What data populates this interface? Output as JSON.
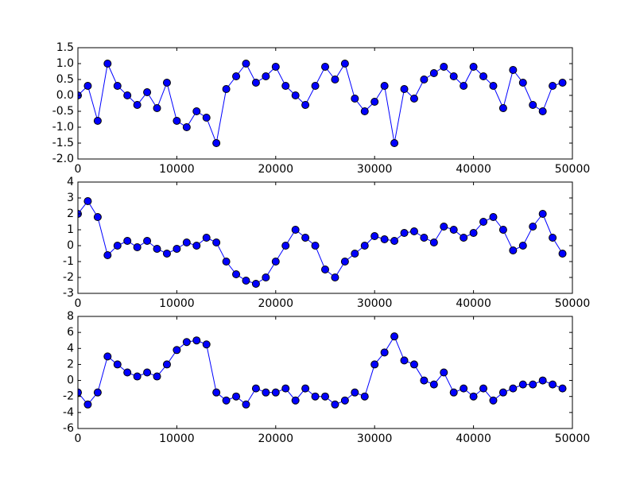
{
  "chart_data": [
    {
      "type": "line",
      "marker": "o",
      "color": "#0000ff",
      "marker_edge_color": "#000000",
      "x": [
        0,
        1000,
        2000,
        3000,
        4000,
        5000,
        6000,
        7000,
        8000,
        9000,
        10000,
        11000,
        12000,
        13000,
        14000,
        15000,
        16000,
        17000,
        18000,
        19000,
        20000,
        21000,
        22000,
        23000,
        24000,
        25000,
        26000,
        27000,
        28000,
        29000,
        30000,
        31000,
        32000,
        33000,
        34000,
        35000,
        36000,
        37000,
        38000,
        39000,
        40000,
        41000,
        42000,
        43000,
        44000,
        45000,
        46000,
        47000,
        48000,
        49000
      ],
      "values": [
        0,
        0.3,
        -0.8,
        1.0,
        0.3,
        0.0,
        -0.3,
        0.1,
        -0.4,
        0.4,
        -0.8,
        -1.0,
        -0.5,
        -0.7,
        -1.5,
        0.2,
        0.6,
        1.0,
        0.4,
        0.6,
        0.9,
        0.3,
        0.0,
        -0.3,
        0.3,
        0.9,
        0.5,
        1.0,
        -0.1,
        -0.5,
        -0.2,
        0.3,
        -1.5,
        0.2,
        -0.1,
        0.5,
        0.7,
        0.9,
        0.6,
        0.3,
        0.9,
        0.6,
        0.3,
        -0.4,
        0.8,
        0.4,
        -0.3,
        -0.5,
        0.3,
        0.4
      ],
      "xlim": [
        0,
        50000
      ],
      "xticks": [
        0,
        10000,
        20000,
        30000,
        40000,
        50000
      ],
      "ylim": [
        -2,
        1.5
      ],
      "yticks": [
        {
          "value": -2,
          "label": "-2.0"
        },
        -1.5,
        {
          "value": -1,
          "label": "-1.0"
        },
        -0.5,
        {
          "value": 0,
          "label": "0.0"
        },
        0.5,
        {
          "value": 1,
          "label": "1.0"
        },
        1.5
      ]
    },
    {
      "type": "line",
      "marker": "o",
      "color": "#0000ff",
      "marker_edge_color": "#000000",
      "x": [
        0,
        1000,
        2000,
        3000,
        4000,
        5000,
        6000,
        7000,
        8000,
        9000,
        10000,
        11000,
        12000,
        13000,
        14000,
        15000,
        16000,
        17000,
        18000,
        19000,
        20000,
        21000,
        22000,
        23000,
        24000,
        25000,
        26000,
        27000,
        28000,
        29000,
        30000,
        31000,
        32000,
        33000,
        34000,
        35000,
        36000,
        37000,
        38000,
        39000,
        40000,
        41000,
        42000,
        43000,
        44000,
        45000,
        46000,
        47000,
        48000,
        49000
      ],
      "values": [
        2.0,
        2.8,
        1.8,
        -0.6,
        0.0,
        0.3,
        -0.1,
        0.3,
        -0.2,
        -0.5,
        -0.2,
        0.2,
        0.0,
        0.5,
        0.2,
        -1.0,
        -1.8,
        -2.2,
        -2.4,
        -2.0,
        -1.0,
        0.0,
        1.0,
        0.5,
        0.0,
        -1.5,
        -2.0,
        -1.0,
        -0.5,
        0.0,
        0.6,
        0.4,
        0.3,
        0.8,
        0.9,
        0.5,
        0.2,
        1.2,
        1.0,
        0.5,
        0.8,
        1.5,
        1.8,
        1.0,
        -0.3,
        0.0,
        1.2,
        2.0,
        0.5,
        -0.5
      ],
      "xlim": [
        0,
        50000
      ],
      "xticks": [
        0,
        10000,
        20000,
        30000,
        40000,
        50000
      ],
      "ylim": [
        -3,
        4
      ],
      "yticks": [
        -3,
        -2,
        -1,
        0,
        1,
        2,
        3,
        4
      ]
    },
    {
      "type": "line",
      "marker": "o",
      "color": "#0000ff",
      "marker_edge_color": "#000000",
      "x": [
        0,
        1000,
        2000,
        3000,
        4000,
        5000,
        6000,
        7000,
        8000,
        9000,
        10000,
        11000,
        12000,
        13000,
        14000,
        15000,
        16000,
        17000,
        18000,
        19000,
        20000,
        21000,
        22000,
        23000,
        24000,
        25000,
        26000,
        27000,
        28000,
        29000,
        30000,
        31000,
        32000,
        33000,
        34000,
        35000,
        36000,
        37000,
        38000,
        39000,
        40000,
        41000,
        42000,
        43000,
        44000,
        45000,
        46000,
        47000,
        48000,
        49000
      ],
      "values": [
        -1.5,
        -3.0,
        -1.5,
        3.0,
        2.0,
        1.0,
        0.5,
        1.0,
        0.5,
        2.0,
        3.8,
        4.8,
        5.0,
        4.5,
        -1.5,
        -2.5,
        -2.0,
        -3.0,
        -1.0,
        -1.5,
        -1.5,
        -1.0,
        -2.5,
        -1.0,
        -2.0,
        -2.0,
        -3.0,
        -2.5,
        -1.5,
        -2.0,
        2.0,
        3.5,
        5.5,
        2.5,
        2.0,
        0.0,
        -0.5,
        1.0,
        -1.5,
        -1.0,
        -2.0,
        -1.0,
        -2.5,
        -1.5,
        -1.0,
        -0.5,
        -0.5,
        0.0,
        -0.5,
        -1.0
      ],
      "xlim": [
        0,
        50000
      ],
      "xticks": [
        0,
        10000,
        20000,
        30000,
        40000,
        50000
      ],
      "ylim": [
        -6,
        8
      ],
      "yticks": [
        -6,
        -4,
        -2,
        0,
        2,
        4,
        6,
        8
      ]
    }
  ]
}
